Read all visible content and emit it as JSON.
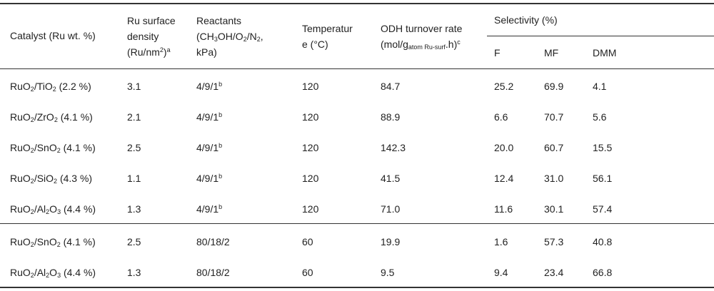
{
  "table": {
    "headers": {
      "catalyst": "Catalyst (Ru wt. %)",
      "density": [
        "Ru surface",
        "density",
        "(Ru/nm",
        "2",
        ")",
        "a"
      ],
      "reactants": [
        "Reactants",
        "(CH",
        "3",
        "OH/O",
        "2",
        "/N",
        "2",
        ",",
        "kPa)"
      ],
      "temperature": [
        "Temperatur",
        "e (°C)"
      ],
      "odh": [
        "ODH turnover rate",
        "(mol/g",
        "atom Ru-surf",
        ".h)",
        "c"
      ],
      "selectivity": "Selectivity (%)",
      "sel_f": "F",
      "sel_mf": "MF",
      "sel_dmm": "DMM"
    },
    "rows": [
      {
        "cat": [
          "RuO",
          "2",
          "/TiO",
          "2",
          "",
          "",
          " (2.2 %)"
        ],
        "density": "3.1",
        "reactants": "4/9/1",
        "note": "b",
        "temp": "120",
        "rate": "84.7",
        "f": "25.2",
        "mf": "69.9",
        "dmm": "4.1"
      },
      {
        "cat": [
          "RuO",
          "2",
          "/ZrO",
          "2",
          "",
          "",
          " (4.1 %)"
        ],
        "density": "2.1",
        "reactants": "4/9/1",
        "note": "b",
        "temp": "120",
        "rate": "88.9",
        "f": "6.6",
        "mf": "70.7",
        "dmm": "5.6"
      },
      {
        "cat": [
          "RuO",
          "2",
          "/SnO",
          "2",
          "",
          "",
          " (4.1 %)"
        ],
        "density": "2.5",
        "reactants": "4/9/1",
        "note": "b",
        "temp": "120",
        "rate": "142.3",
        "f": "20.0",
        "mf": "60.7",
        "dmm": "15.5"
      },
      {
        "cat": [
          "RuO",
          "2",
          "/SiO",
          "2",
          "",
          "",
          " (4.3 %)"
        ],
        "density": "1.1",
        "reactants": "4/9/1",
        "note": "b",
        "temp": "120",
        "rate": "41.5",
        "f": "12.4",
        "mf": "31.0",
        "dmm": "56.1"
      },
      {
        "cat": [
          "RuO",
          "2",
          "/Al",
          "2",
          "O",
          "3",
          " (4.4 %)"
        ],
        "density": "1.3",
        "reactants": "4/9/1",
        "note": "b",
        "temp": "120",
        "rate": "71.0",
        "f": "11.6",
        "mf": "30.1",
        "dmm": "57.4"
      },
      {
        "cat": [
          "RuO",
          "2",
          "/SnO",
          "2",
          "",
          "",
          " (4.1 %)"
        ],
        "density": "2.5",
        "reactants": "80/18/2",
        "note": "",
        "temp": "60",
        "rate": "19.9",
        "f": "1.6",
        "mf": "57.3",
        "dmm": "40.8"
      },
      {
        "cat": [
          "RuO",
          "2",
          "/Al",
          "2",
          "O",
          "3",
          " (4.4 %)"
        ],
        "density": "1.3",
        "reactants": "80/18/2",
        "note": "",
        "temp": "60",
        "rate": "9.5",
        "f": "9.4",
        "mf": "23.4",
        "dmm": "66.8"
      }
    ]
  }
}
